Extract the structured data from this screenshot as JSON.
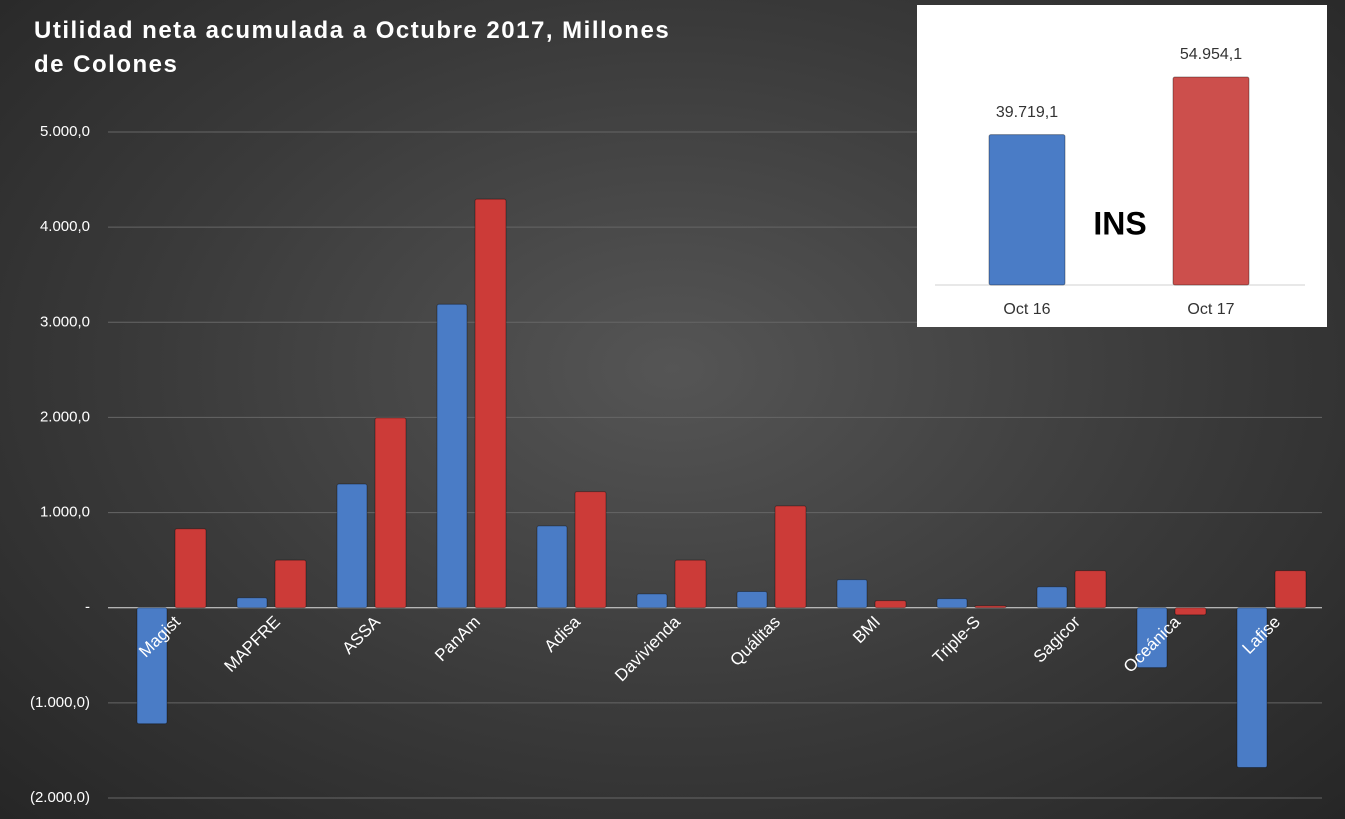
{
  "chart_data": [
    {
      "type": "bar",
      "title": "Utilidad neta acumulada a Octubre 2017, Millones de Colones",
      "categories": [
        "Magist",
        "MAPFRE",
        "ASSA",
        "PanAm",
        "Adisa",
        "Davivienda",
        "Quálitas",
        "BMI",
        "Triple-S",
        "Sagicor",
        "Oceánica",
        "Lafise"
      ],
      "series": [
        {
          "color": "#4a7cc6",
          "values": [
            -1220,
            105,
            1300,
            3190,
            860,
            145,
            170,
            295,
            95,
            220,
            -630,
            -1680
          ]
        },
        {
          "color": "#cc3b38",
          "values": [
            830,
            500,
            1995,
            4295,
            1220,
            500,
            1070,
            75,
            20,
            390,
            -75,
            390
          ]
        }
      ],
      "ylim": [
        -2000,
        5000
      ],
      "yticks": [
        {
          "value": -2000,
          "label": "(2.000,0)"
        },
        {
          "value": -1000,
          "label": "(1.000,0)"
        },
        {
          "value": 0,
          "label": "-"
        },
        {
          "value": 1000,
          "label": "1.000,0"
        },
        {
          "value": 2000,
          "label": "2.000,0"
        },
        {
          "value": 3000,
          "label": "3.000,0"
        },
        {
          "value": 4000,
          "label": "4.000,0"
        },
        {
          "value": 5000,
          "label": "5.000,0"
        }
      ],
      "grid": true
    },
    {
      "type": "bar",
      "annotation": "INS",
      "categories": [
        "Oct 16",
        "Oct 17"
      ],
      "values": [
        39719.1,
        54954.1
      ],
      "value_labels": [
        "39.719,1",
        "54.954,1"
      ],
      "colors": [
        "#4a7cc6",
        "#cc4f4c"
      ],
      "ylim": [
        0,
        70000
      ]
    }
  ]
}
